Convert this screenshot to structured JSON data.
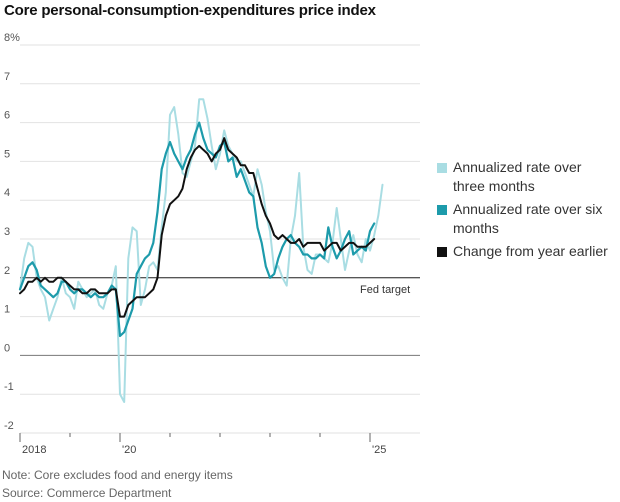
{
  "chart_data": {
    "type": "line",
    "title": "Core personal-consumption-expenditures price index",
    "y_unit_label": "8%",
    "ylim": [
      -2,
      8
    ],
    "y_ticks": [
      -2,
      -1,
      0,
      1,
      2,
      3,
      4,
      5,
      6,
      7,
      8
    ],
    "y_tick_labels": [
      "-2",
      "-1",
      "0",
      "1",
      "2",
      "3",
      "4",
      "5",
      "6",
      "7",
      "8%"
    ],
    "x_range": [
      2018.0,
      2026.0
    ],
    "x_ticks": [
      2018,
      2019,
      2020,
      2021,
      2022,
      2023,
      2024,
      2025
    ],
    "x_tick_labels": [
      {
        "year": 2018,
        "label": "2018"
      },
      {
        "year": 2020,
        "label": "'20"
      },
      {
        "year": 2025,
        "label": "'25"
      }
    ],
    "reference_line": {
      "value": 2,
      "label": "Fed target"
    },
    "series": [
      {
        "name": "Annualized rate over three months",
        "color": "#a9dde3",
        "start": 2018.0,
        "step": 0.08333,
        "values": [
          1.7,
          2.5,
          2.9,
          2.8,
          2.0,
          1.7,
          1.5,
          0.9,
          1.2,
          1.5,
          2.0,
          1.6,
          1.5,
          1.2,
          1.9,
          1.7,
          1.5,
          1.6,
          1.7,
          1.3,
          1.2,
          1.6,
          1.8,
          2.3,
          -1.0,
          -1.2,
          2.5,
          3.3,
          3.2,
          1.3,
          1.7,
          2.3,
          2.4,
          2.2,
          3.3,
          4.2,
          6.2,
          6.4,
          5.7,
          4.7,
          4.6,
          5.0,
          5.4,
          6.6,
          6.6,
          6.1,
          5.4,
          4.8,
          5.2,
          5.8,
          5.4,
          5.2,
          5.0,
          5.0,
          4.7,
          4.4,
          4.1,
          4.8,
          4.4,
          3.7,
          3.2,
          2.2,
          2.3,
          2.0,
          1.8,
          3.0,
          3.6,
          4.7,
          2.8,
          2.2,
          2.1,
          2.6,
          2.6,
          2.5,
          2.4,
          2.9,
          3.8,
          3.0,
          2.2,
          2.7,
          3.1,
          2.6,
          2.4,
          3.0,
          2.7,
          3.1,
          3.6,
          4.4
        ]
      },
      {
        "name": "Annualized rate over six months",
        "color": "#1d9bab",
        "start": 2018.0,
        "step": 0.08333,
        "values": [
          1.7,
          2.0,
          2.3,
          2.4,
          2.2,
          1.8,
          1.7,
          1.6,
          1.5,
          1.6,
          1.9,
          1.9,
          1.7,
          1.6,
          1.7,
          1.7,
          1.6,
          1.5,
          1.6,
          1.5,
          1.5,
          1.6,
          1.8,
          1.7,
          0.5,
          0.6,
          0.9,
          1.2,
          2.1,
          2.3,
          2.5,
          2.6,
          2.9,
          3.7,
          4.8,
          5.2,
          5.5,
          5.2,
          5.0,
          4.8,
          5.1,
          5.3,
          5.7,
          6.0,
          5.6,
          5.3,
          5.2,
          5.1,
          5.4,
          5.5,
          5.0,
          5.1,
          4.6,
          4.8,
          4.5,
          4.2,
          4.1,
          3.3,
          2.9,
          2.3,
          2.0,
          2.1,
          2.5,
          2.8,
          3.0,
          3.1,
          2.9,
          2.8,
          2.6,
          2.6,
          2.5,
          2.5,
          2.6,
          2.5,
          3.3,
          2.8,
          2.5,
          2.7,
          3.0,
          3.2,
          2.6,
          2.7,
          2.8,
          2.7,
          3.2,
          3.4
        ]
      },
      {
        "name": "Change from year earlier",
        "color": "#111111",
        "start": 2018.0,
        "step": 0.08333,
        "values": [
          1.6,
          1.7,
          1.9,
          1.9,
          2.0,
          1.9,
          2.0,
          1.9,
          1.9,
          2.0,
          2.0,
          1.9,
          1.8,
          1.7,
          1.7,
          1.6,
          1.6,
          1.7,
          1.7,
          1.6,
          1.6,
          1.6,
          1.7,
          1.7,
          1.0,
          1.0,
          1.3,
          1.4,
          1.5,
          1.5,
          1.5,
          1.6,
          1.7,
          2.0,
          3.1,
          3.6,
          3.9,
          4.0,
          4.1,
          4.3,
          4.8,
          5.1,
          5.3,
          5.4,
          5.3,
          5.2,
          5.0,
          5.2,
          5.3,
          5.6,
          5.3,
          5.2,
          5.1,
          4.9,
          4.9,
          4.7,
          4.7,
          4.3,
          3.9,
          3.6,
          3.4,
          3.1,
          3.0,
          3.1,
          3.0,
          2.9,
          2.9,
          3.0,
          2.8,
          2.9,
          2.9,
          2.9,
          2.9,
          2.7,
          2.8,
          2.9,
          2.9,
          2.7,
          2.8,
          2.9,
          2.9,
          2.8,
          2.8,
          2.8,
          2.9,
          3.0
        ]
      }
    ],
    "annotations": [
      "Fed target"
    ]
  },
  "legend": {
    "items": [
      {
        "label_line1": "Annualized rate over",
        "label_line2": "three months",
        "color": "#a9dde3"
      },
      {
        "label_line1": "Annualized rate over six",
        "label_line2": "months",
        "color": "#1d9bab"
      },
      {
        "label_line1": "Change from year earlier",
        "label_line2": "",
        "color": "#111111"
      }
    ]
  },
  "footer": {
    "note": "Note: Core excludes food and energy items",
    "source": "Source: Commerce Department"
  }
}
